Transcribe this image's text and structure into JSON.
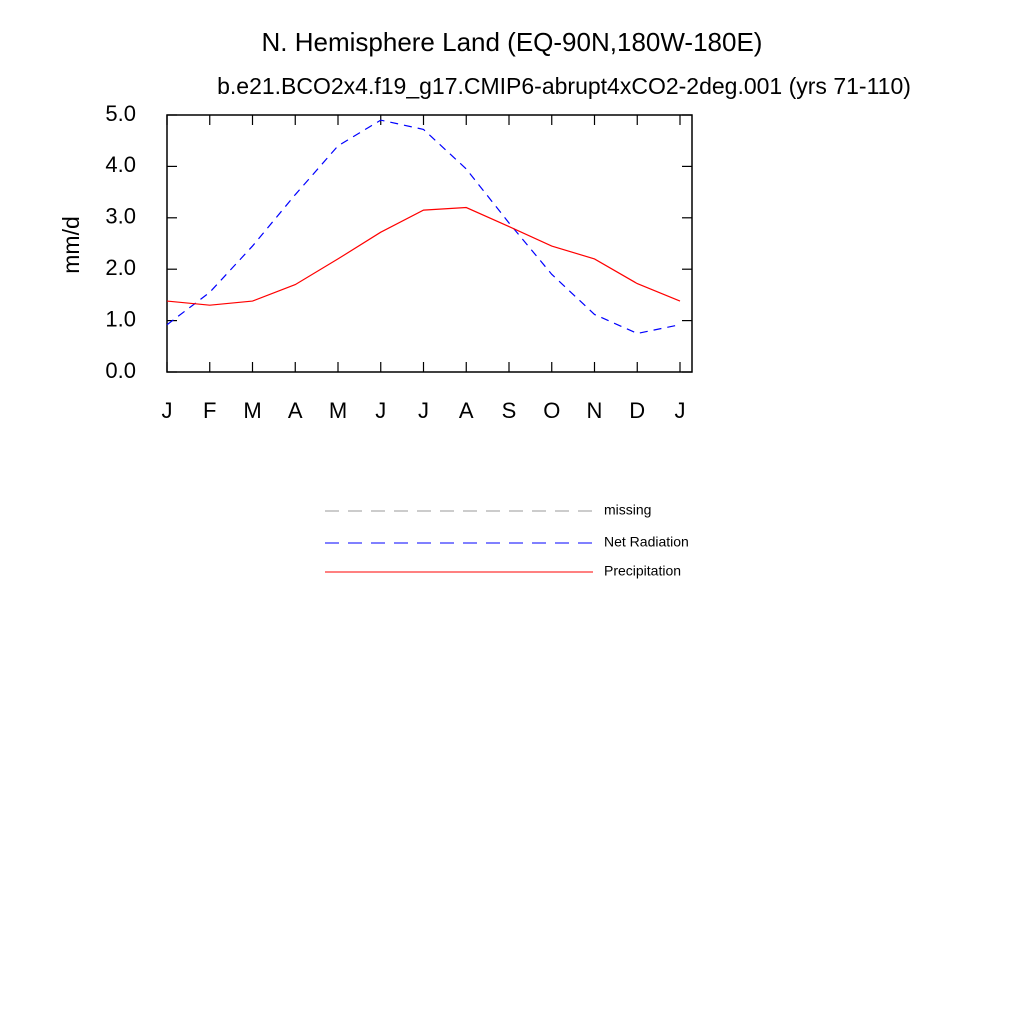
{
  "chart_data": {
    "type": "line",
    "title": "N. Hemisphere Land (EQ-90N,180W-180E)",
    "subtitle": "b.e21.BCO2x4.f19_g17.CMIP6-abrupt4xCO2-2deg.001 (yrs 71-110)",
    "y_label": "mm/d",
    "categories": [
      "J",
      "F",
      "M",
      "A",
      "M",
      "J",
      "J",
      "A",
      "S",
      "O",
      "N",
      "D",
      "J"
    ],
    "ylim": [
      0,
      5
    ],
    "yticks": [
      {
        "value": 0,
        "label": "0.0"
      },
      {
        "value": 1,
        "label": "1.0"
      },
      {
        "value": 2,
        "label": "2.0"
      },
      {
        "value": 3,
        "label": "3.0"
      },
      {
        "value": 4,
        "label": "4.0"
      },
      {
        "value": 5,
        "label": "5.0"
      }
    ],
    "series": [
      {
        "name": "missing",
        "color": "#999999",
        "dash": true,
        "values": [
          null,
          null,
          null,
          null,
          null,
          null,
          null,
          null,
          null,
          null,
          null,
          null,
          null
        ]
      },
      {
        "name": "Net Radiation",
        "color": "#0000ff",
        "dash": true,
        "values": [
          0.92,
          1.55,
          2.45,
          3.45,
          4.4,
          4.9,
          4.72,
          3.95,
          2.9,
          1.9,
          1.12,
          0.75,
          0.92
        ]
      },
      {
        "name": "Precipitation",
        "color": "#ff0000",
        "dash": false,
        "values": [
          1.38,
          1.3,
          1.38,
          1.7,
          2.2,
          2.72,
          3.15,
          3.2,
          2.83,
          2.45,
          2.2,
          1.72,
          1.38
        ]
      }
    ]
  }
}
